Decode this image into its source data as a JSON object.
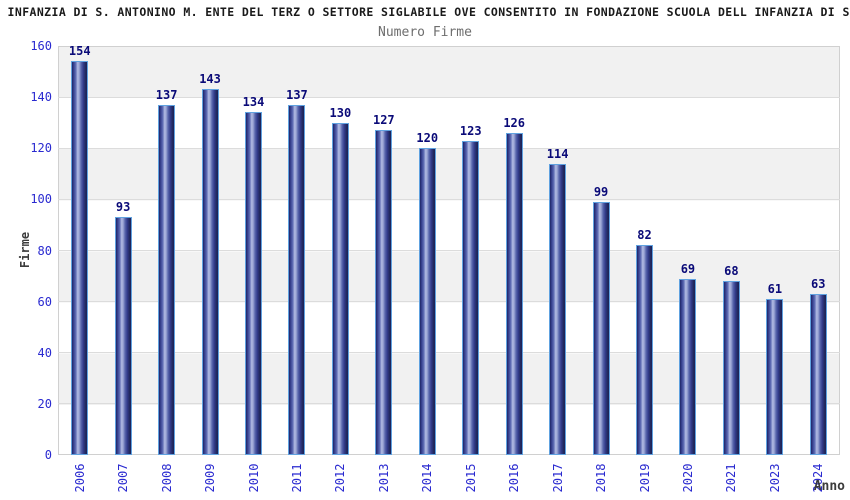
{
  "chart_data": {
    "type": "bar",
    "title": "ELL INFANZIA DI S. ANTONINO M. ENTE DEL TERZ O SETTORE SIGLABILE OVE CONSENTITO IN FONDAZIONE SCUOLA DELL INFANZIA DI S. A",
    "subtitle": "Numero Firme",
    "xlabel": "Anno",
    "ylabel": "Firme",
    "categories": [
      "2006",
      "2007",
      "2008",
      "2009",
      "2010",
      "2011",
      "2012",
      "2013",
      "2014",
      "2015",
      "2016",
      "2017",
      "2018",
      "2019",
      "2020",
      "2021",
      "2023",
      "2024"
    ],
    "values": [
      154,
      93,
      137,
      143,
      134,
      137,
      130,
      127,
      120,
      123,
      126,
      114,
      99,
      82,
      69,
      68,
      61,
      63
    ],
    "ylim": [
      0,
      160
    ],
    "ytick_step": 20,
    "yticks": [
      0,
      20,
      40,
      60,
      80,
      100,
      120,
      140,
      160
    ],
    "grid": "horizontal-bands-alternating",
    "legend": "none",
    "bar_labels_shown": true,
    "colors": {
      "bar_fill_dark": "#1f2566",
      "bar_fill_light": "#b2bce4",
      "bar_border": "#60a2e0",
      "value_label": "#0a0a78",
      "tick_label": "#2a2ad0",
      "title": "#1a1a1a",
      "subtitle": "#6e6e6e",
      "axis_title": "#3c3c3c",
      "band": "#f1f1f1",
      "plot_border": "#d0d0d0"
    }
  }
}
